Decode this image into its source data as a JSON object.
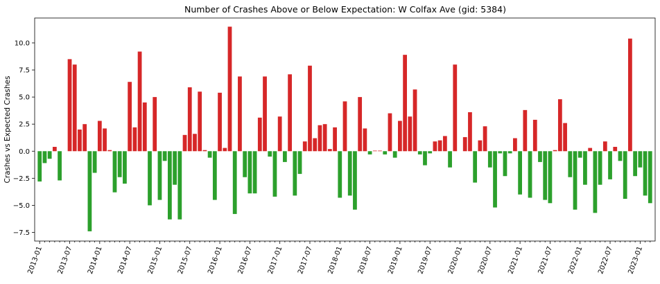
{
  "colors": {
    "positive": "#d62728",
    "negative": "#2ca02c",
    "axis": "#000000",
    "background": "#ffffff"
  },
  "chart_data": {
    "type": "bar",
    "title": "Number of Crashes Above or Below Expectation: W Colfax Ave (gid: 5384)",
    "xlabel": "",
    "ylabel": "Crashes vs Expected Crashes",
    "ylim": [
      -8.3,
      12.3
    ],
    "yticks": [
      -7.5,
      -5.0,
      -2.5,
      0.0,
      2.5,
      5.0,
      7.5,
      10.0
    ],
    "ytick_labels": [
      "−7.5",
      "−5.0",
      "−2.5",
      "0.0",
      "2.5",
      "5.0",
      "7.5",
      "10.0"
    ],
    "xlim": [
      "2012-12",
      "2023-04"
    ],
    "start_month": "2013-01",
    "xtick_labels": [
      "2013-01",
      "2013-07",
      "2014-01",
      "2014-07",
      "2015-01",
      "2015-07",
      "2016-01",
      "2016-07",
      "2017-01",
      "2017-07",
      "2018-01",
      "2018-07",
      "2019-01",
      "2019-07",
      "2020-01",
      "2020-07",
      "2021-01",
      "2021-07",
      "2022-01",
      "2022-07",
      "2023-01"
    ],
    "grid": false,
    "legend": "none",
    "values": [
      -2.8,
      -1.1,
      -0.7,
      0.4,
      -2.7,
      0,
      8.5,
      8.0,
      2.0,
      2.5,
      -7.4,
      -2.0,
      2.8,
      2.1,
      0.1,
      -3.8,
      -2.4,
      -3.0,
      6.4,
      2.2,
      9.2,
      4.5,
      -5.0,
      5.0,
      -4.5,
      -0.9,
      -6.3,
      -3.1,
      -6.3,
      1.5,
      5.9,
      1.6,
      5.5,
      0.1,
      -0.6,
      -4.5,
      5.4,
      0.3,
      11.5,
      -5.8,
      6.9,
      -2.4,
      -3.9,
      -3.9,
      3.1,
      6.9,
      -0.5,
      -4.2,
      3.2,
      -1.0,
      7.1,
      -4.1,
      -2.1,
      0.9,
      7.9,
      1.2,
      2.4,
      2.5,
      0.2,
      2.2,
      -4.3,
      4.6,
      -4.1,
      -5.4,
      5.0,
      2.1,
      -0.3,
      0.05,
      0.05,
      -0.3,
      3.5,
      -0.6,
      2.8,
      8.9,
      3.2,
      5.7,
      -0.3,
      -1.3,
      -0.2,
      0.9,
      1.0,
      1.4,
      -1.5,
      8.0,
      0,
      1.3,
      3.6,
      -2.9,
      1.0,
      2.3,
      -1.5,
      -5.2,
      -0.2,
      -2.3,
      -0.2,
      1.2,
      -4.0,
      3.8,
      -4.3,
      2.9,
      -1.0,
      -4.5,
      -4.8,
      0.1,
      4.8,
      2.6,
      -2.4,
      -5.4,
      -0.6,
      -3.1,
      0.3,
      -5.7,
      -3.1,
      0.9,
      -2.6,
      0.4,
      -0.9,
      -4.4,
      10.4,
      -2.3,
      -1.5,
      -4.1,
      -4.8
    ]
  }
}
